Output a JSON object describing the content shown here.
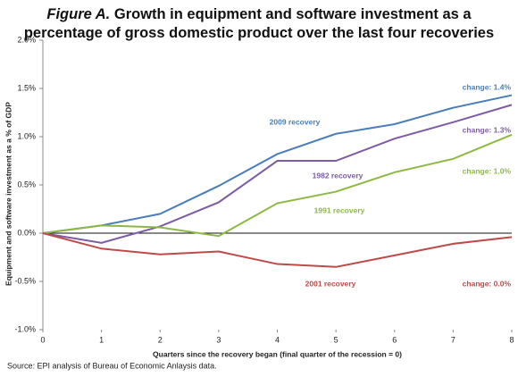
{
  "chart_data": {
    "type": "line",
    "title_label": "Figure A.",
    "title": "Growth in equipment and software investment as a percentage of gross domestic product over the last four recoveries",
    "x_label": "Quarters since the recovery began (final quarter of the recession = 0)",
    "y_label": "Equipment and software investment as a % of GDP",
    "source": "Source: EPI analysis of Bureau of Economic Anlaysis data.",
    "x": [
      0,
      1,
      2,
      3,
      4,
      5,
      6,
      7,
      8
    ],
    "xlim": [
      0,
      8
    ],
    "xticks": [
      0,
      1,
      2,
      3,
      4,
      5,
      6,
      7,
      8
    ],
    "ylim": [
      -1,
      2
    ],
    "yticks": [
      {
        "value": -1,
        "label": "-1.0%"
      },
      {
        "value": -0.5,
        "label": "-0.5%"
      },
      {
        "value": 0,
        "label": "0.0%"
      },
      {
        "value": 0.5,
        "label": "0.5%"
      },
      {
        "value": 1,
        "label": "1.0%"
      },
      {
        "value": 1.5,
        "label": "1.5%"
      },
      {
        "value": 2,
        "label": "2.0%"
      }
    ],
    "series": [
      {
        "name": "2009 recovery",
        "color": "#4a7ebb",
        "end_label": "change: 1.4%",
        "values": [
          0,
          0.08,
          0.2,
          0.49,
          0.82,
          1.03,
          1.13,
          1.3,
          1.43
        ]
      },
      {
        "name": "1982 recovery",
        "color": "#7d5ba6",
        "end_label": "change: 1.3%",
        "values": [
          0,
          -0.1,
          0.07,
          0.32,
          0.75,
          0.75,
          0.98,
          1.15,
          1.33
        ]
      },
      {
        "name": "1991 recovery",
        "color": "#8db843",
        "end_label": "change: 1.0%",
        "values": [
          0,
          0.08,
          0.06,
          -0.03,
          0.31,
          0.43,
          0.63,
          0.77,
          1.02
        ]
      },
      {
        "name": "2001 recovery",
        "color": "#be4b48",
        "end_label": "change: 0.0%",
        "values": [
          0,
          -0.16,
          -0.22,
          -0.19,
          -0.32,
          -0.35,
          -0.23,
          -0.11,
          -0.04
        ]
      }
    ]
  }
}
